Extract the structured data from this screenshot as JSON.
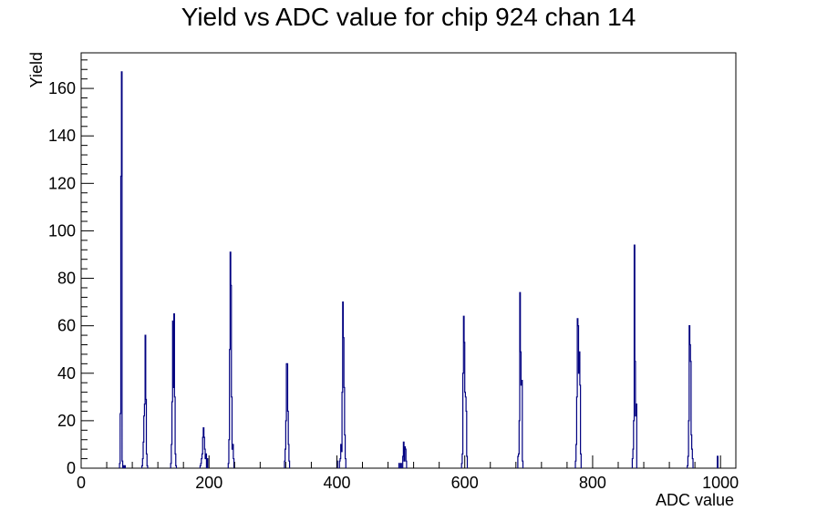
{
  "chart_data": {
    "type": "bar",
    "title": "Yield vs ADC value for chip 924 chan 14",
    "xlabel": "ADC value",
    "ylabel": "Yield",
    "xlim": [
      0,
      1024
    ],
    "ylim": [
      0,
      175
    ],
    "x_ticks": [
      0,
      200,
      400,
      600,
      800,
      1000
    ],
    "y_ticks": [
      0,
      20,
      40,
      60,
      80,
      100,
      120,
      140,
      160
    ],
    "grid": false,
    "legend": "none",
    "color": "#000080",
    "bin_width": 1,
    "bins": [
      {
        "x": 60,
        "y": 2
      },
      {
        "x": 61,
        "y": 23
      },
      {
        "x": 62,
        "y": 123
      },
      {
        "x": 63,
        "y": 167
      },
      {
        "x": 64,
        "y": 3
      },
      {
        "x": 66,
        "y": 1
      },
      {
        "x": 68,
        "y": 1
      },
      {
        "x": 95,
        "y": 1
      },
      {
        "x": 96,
        "y": 4
      },
      {
        "x": 97,
        "y": 11
      },
      {
        "x": 98,
        "y": 22
      },
      {
        "x": 99,
        "y": 27
      },
      {
        "x": 100,
        "y": 56
      },
      {
        "x": 101,
        "y": 29
      },
      {
        "x": 102,
        "y": 6
      },
      {
        "x": 103,
        "y": 1
      },
      {
        "x": 140,
        "y": 2
      },
      {
        "x": 141,
        "y": 10
      },
      {
        "x": 142,
        "y": 28
      },
      {
        "x": 143,
        "y": 62
      },
      {
        "x": 144,
        "y": 34
      },
      {
        "x": 145,
        "y": 65
      },
      {
        "x": 146,
        "y": 30
      },
      {
        "x": 147,
        "y": 6
      },
      {
        "x": 148,
        "y": 1
      },
      {
        "x": 186,
        "y": 1
      },
      {
        "x": 187,
        "y": 2
      },
      {
        "x": 188,
        "y": 4
      },
      {
        "x": 189,
        "y": 6
      },
      {
        "x": 190,
        "y": 13
      },
      {
        "x": 191,
        "y": 17
      },
      {
        "x": 192,
        "y": 13
      },
      {
        "x": 193,
        "y": 8
      },
      {
        "x": 194,
        "y": 4
      },
      {
        "x": 195,
        "y": 6
      },
      {
        "x": 197,
        "y": 4
      },
      {
        "x": 230,
        "y": 2
      },
      {
        "x": 231,
        "y": 12
      },
      {
        "x": 232,
        "y": 50
      },
      {
        "x": 233,
        "y": 91
      },
      {
        "x": 234,
        "y": 77
      },
      {
        "x": 235,
        "y": 30
      },
      {
        "x": 236,
        "y": 8
      },
      {
        "x": 237,
        "y": 10
      },
      {
        "x": 238,
        "y": 4
      },
      {
        "x": 318,
        "y": 3
      },
      {
        "x": 319,
        "y": 8
      },
      {
        "x": 320,
        "y": 20
      },
      {
        "x": 321,
        "y": 44
      },
      {
        "x": 322,
        "y": 44
      },
      {
        "x": 323,
        "y": 24
      },
      {
        "x": 324,
        "y": 10
      },
      {
        "x": 325,
        "y": 3
      },
      {
        "x": 400,
        "y": 3
      },
      {
        "x": 404,
        "y": 3
      },
      {
        "x": 405,
        "y": 4
      },
      {
        "x": 406,
        "y": 10
      },
      {
        "x": 407,
        "y": 7
      },
      {
        "x": 408,
        "y": 32
      },
      {
        "x": 409,
        "y": 70
      },
      {
        "x": 410,
        "y": 55
      },
      {
        "x": 411,
        "y": 34
      },
      {
        "x": 412,
        "y": 14
      },
      {
        "x": 413,
        "y": 4
      },
      {
        "x": 497,
        "y": 2
      },
      {
        "x": 500,
        "y": 2
      },
      {
        "x": 503,
        "y": 5
      },
      {
        "x": 504,
        "y": 11
      },
      {
        "x": 505,
        "y": 3
      },
      {
        "x": 506,
        "y": 9
      },
      {
        "x": 507,
        "y": 8
      },
      {
        "x": 508,
        "y": 3
      },
      {
        "x": 595,
        "y": 2
      },
      {
        "x": 596,
        "y": 6
      },
      {
        "x": 597,
        "y": 40
      },
      {
        "x": 598,
        "y": 64
      },
      {
        "x": 599,
        "y": 53
      },
      {
        "x": 600,
        "y": 32
      },
      {
        "x": 601,
        "y": 30
      },
      {
        "x": 602,
        "y": 24
      },
      {
        "x": 603,
        "y": 5
      },
      {
        "x": 683,
        "y": 5
      },
      {
        "x": 684,
        "y": 6
      },
      {
        "x": 685,
        "y": 20
      },
      {
        "x": 686,
        "y": 74
      },
      {
        "x": 687,
        "y": 49
      },
      {
        "x": 688,
        "y": 35
      },
      {
        "x": 689,
        "y": 37
      },
      {
        "x": 690,
        "y": 3
      },
      {
        "x": 773,
        "y": 3
      },
      {
        "x": 774,
        "y": 10
      },
      {
        "x": 775,
        "y": 30
      },
      {
        "x": 776,
        "y": 63
      },
      {
        "x": 777,
        "y": 60
      },
      {
        "x": 778,
        "y": 40
      },
      {
        "x": 779,
        "y": 49
      },
      {
        "x": 780,
        "y": 35
      },
      {
        "x": 781,
        "y": 6
      },
      {
        "x": 862,
        "y": 4
      },
      {
        "x": 863,
        "y": 8
      },
      {
        "x": 864,
        "y": 20
      },
      {
        "x": 865,
        "y": 94
      },
      {
        "x": 866,
        "y": 45
      },
      {
        "x": 867,
        "y": 22
      },
      {
        "x": 868,
        "y": 27
      },
      {
        "x": 948,
        "y": 1
      },
      {
        "x": 949,
        "y": 5
      },
      {
        "x": 950,
        "y": 20
      },
      {
        "x": 951,
        "y": 60
      },
      {
        "x": 952,
        "y": 52
      },
      {
        "x": 953,
        "y": 45
      },
      {
        "x": 954,
        "y": 14
      },
      {
        "x": 955,
        "y": 8
      },
      {
        "x": 956,
        "y": 4
      },
      {
        "x": 995,
        "y": 5
      }
    ]
  }
}
